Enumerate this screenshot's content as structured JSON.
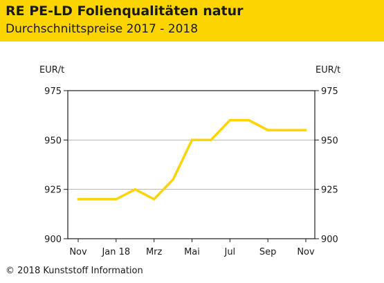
{
  "header": {
    "title": "RE PE-LD Folienqualitäten natur",
    "subtitle": "Durchschnittspreise 2017 - 2018"
  },
  "footer": {
    "copyright": "© 2018 Kunststoff Information"
  },
  "colors": {
    "header_bg": "#fcd400",
    "line": "#fcd400",
    "grid": "#b3b3b3",
    "axis": "#1a1a1a"
  },
  "chart_data": {
    "type": "line",
    "title": "",
    "ylabel_left": "EUR/t",
    "ylabel_right": "EUR/t",
    "ylim": [
      900,
      975
    ],
    "yticks": [
      "900",
      "925",
      "950",
      "975"
    ],
    "x_tick_labels": [
      "Nov",
      "Jan 18",
      "Mrz",
      "Mai",
      "Jul",
      "Sep",
      "Nov"
    ],
    "grid": true,
    "series": [
      {
        "x": [
          "Nov 17",
          "Dez 17",
          "Jan 18",
          "Feb 18",
          "Mrz 18",
          "Apr 18",
          "Mai 18",
          "Jun 18",
          "Jul 18",
          "Aug 18",
          "Sep 18",
          "Okt 18",
          "Nov 18"
        ],
        "values": [
          920,
          920,
          920,
          925,
          920,
          930,
          950,
          950,
          960,
          960,
          955,
          955,
          955
        ]
      }
    ]
  }
}
